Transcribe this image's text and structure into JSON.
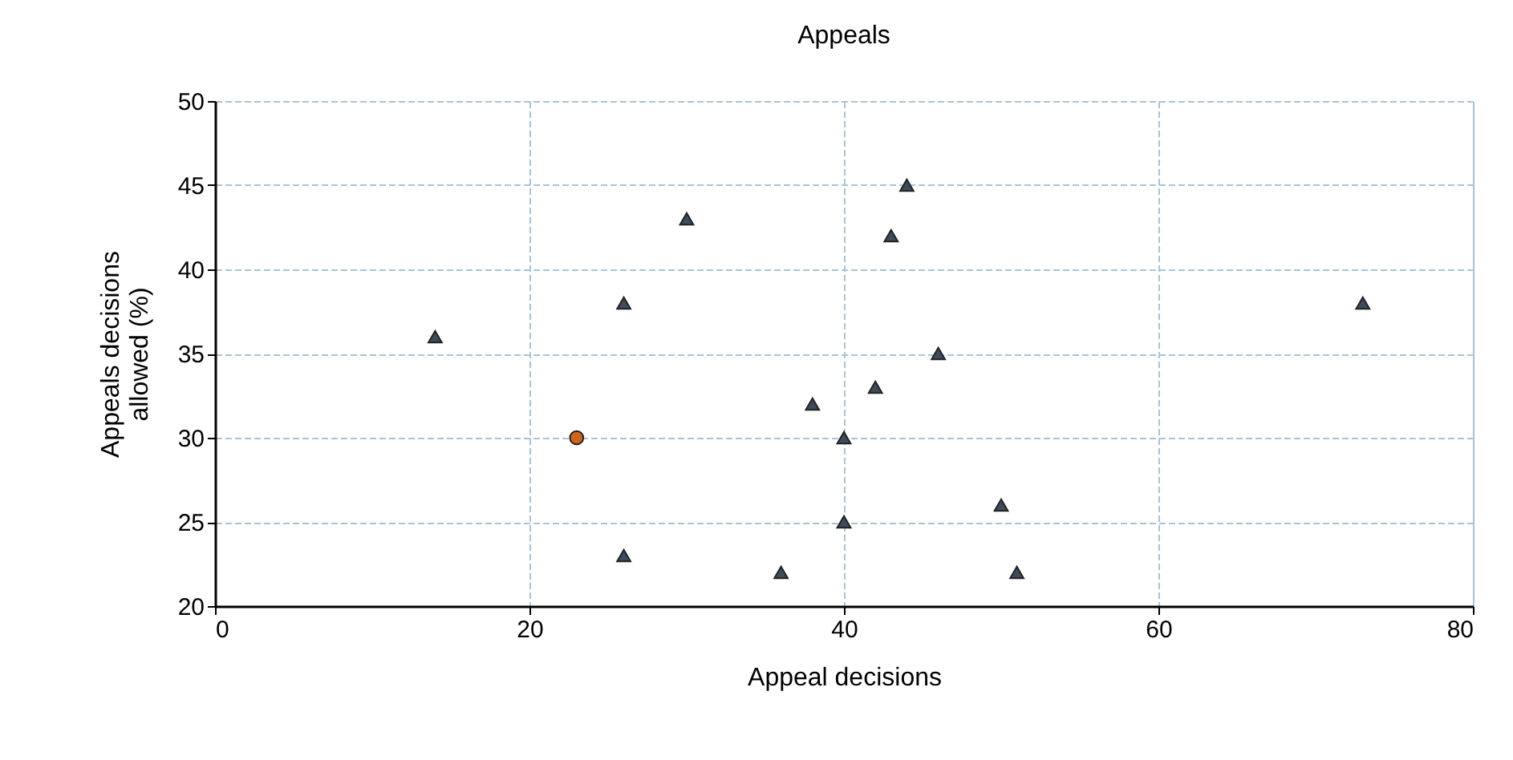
{
  "chart_data": {
    "type": "scatter",
    "title": "Appeals",
    "xlabel": "Appeal decisions",
    "ylabel": "Appeals decisions allowed (%)",
    "xlim": [
      0,
      80
    ],
    "xticks": [
      0,
      20,
      40,
      60,
      80
    ],
    "ylim": [
      20,
      50
    ],
    "yticks": [
      20,
      25,
      30,
      35,
      40,
      45,
      50
    ],
    "grid": true,
    "series": [
      {
        "color": "#3d4b5c",
        "marker": "triangle",
        "x": [
          14,
          26,
          26,
          30,
          36,
          38,
          40,
          40,
          42,
          43,
          44,
          46,
          50,
          51,
          73
        ],
        "values": [
          36,
          38,
          23,
          43,
          22,
          32,
          30,
          25,
          33,
          42,
          45,
          35,
          26,
          22,
          38
        ]
      },
      {
        "color": "#d0661c",
        "marker": "circle",
        "x": [
          23
        ],
        "values": [
          30
        ]
      }
    ]
  }
}
